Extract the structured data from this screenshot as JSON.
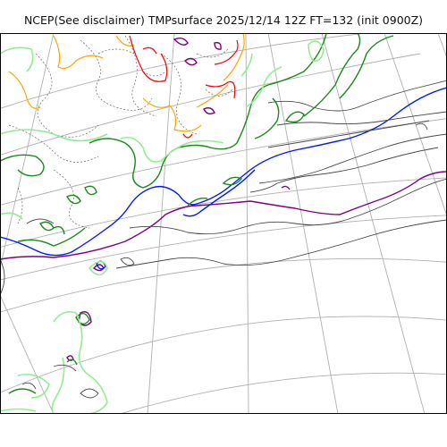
{
  "title": "NCEP(See disclaimer) TMPsurface 2025/12/14 12Z FT=132 (init 0900Z)",
  "colors": {
    "graticule": "#b0b0b0",
    "isotherm_default": "#4a4a4a",
    "isotherm_blue": "#0019ff",
    "isotherm_purple": "#800080",
    "isotherm_dark_green": "#1a8a1a",
    "isotherm_light_green": "#90ee90",
    "isotherm_orange": "#ffa500",
    "isotherm_red": "#ff0000",
    "frame": "#000000"
  }
}
